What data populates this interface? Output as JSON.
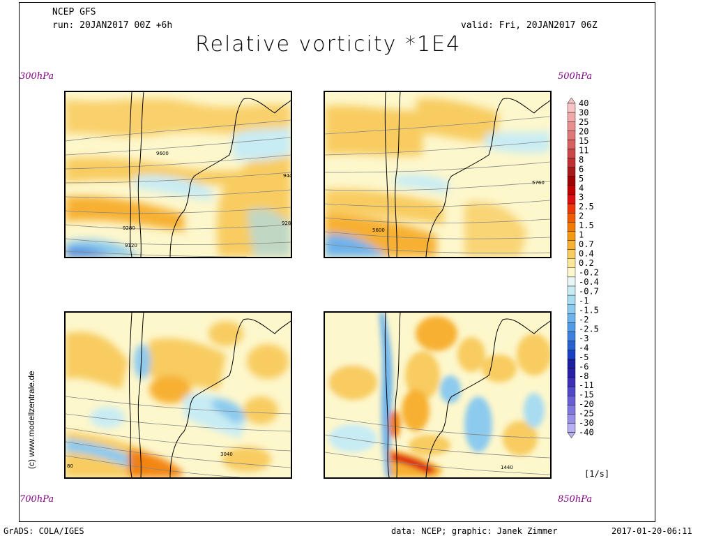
{
  "header": {
    "model": "NCEP GFS",
    "run": "run: 20JAN2017 00Z +6h",
    "valid": "valid: Fri, 20JAN2017 06Z",
    "title": "Relative vorticity *1E4"
  },
  "panels": [
    {
      "level": "300hPa",
      "contours": [
        "9600",
        "9280",
        "9120",
        "944",
        "928"
      ]
    },
    {
      "level": "500hPa",
      "contours": [
        "5760",
        "5600"
      ]
    },
    {
      "level": "700hPa",
      "contours": [
        "3040",
        "80"
      ]
    },
    {
      "level": "850hPa",
      "contours": [
        "1440"
      ]
    }
  ],
  "colorbar": {
    "labels": [
      "40",
      "30",
      "25",
      "20",
      "15",
      "11",
      "8",
      "6",
      "5",
      "4",
      "3",
      "2.5",
      "2",
      "1.5",
      "1",
      "0.7",
      "0.4",
      "0.2",
      "-0.2",
      "-0.4",
      "-0.7",
      "-1",
      "-1.5",
      "-2",
      "-2.5",
      "-3",
      "-4",
      "-5",
      "-6",
      "-8",
      "-11",
      "-15",
      "-20",
      "-25",
      "-30",
      "-40"
    ],
    "colors": [
      "#f6c4c4",
      "#f0a8a8",
      "#e89090",
      "#e07878",
      "#d86060",
      "#cc4848",
      "#c03030",
      "#a81818",
      "#a00000",
      "#c00000",
      "#dc1010",
      "#ec3808",
      "#f05a00",
      "#f27a00",
      "#f59a10",
      "#f7b030",
      "#f8cc60",
      "#fbe69a",
      "#fdf7cc",
      "#e8f6f8",
      "#c8ecf4",
      "#a8dcf0",
      "#8ccaee",
      "#6cb2ec",
      "#509ae8",
      "#3c80e0",
      "#2860d0",
      "#1840c0",
      "#1c20a0",
      "#2a20a8",
      "#3c30b8",
      "#5048c8",
      "#6860d4",
      "#8078dc",
      "#9890e6",
      "#b8b0f0"
    ],
    "unit": "[1/s]"
  },
  "side_label": "(c) www.modellzentrale.de",
  "footer": {
    "left": "GrADS: COLA/IGES",
    "center": "data: NCEP; graphic: Janek Zimmer",
    "right": "2017-01-20-06:11"
  }
}
